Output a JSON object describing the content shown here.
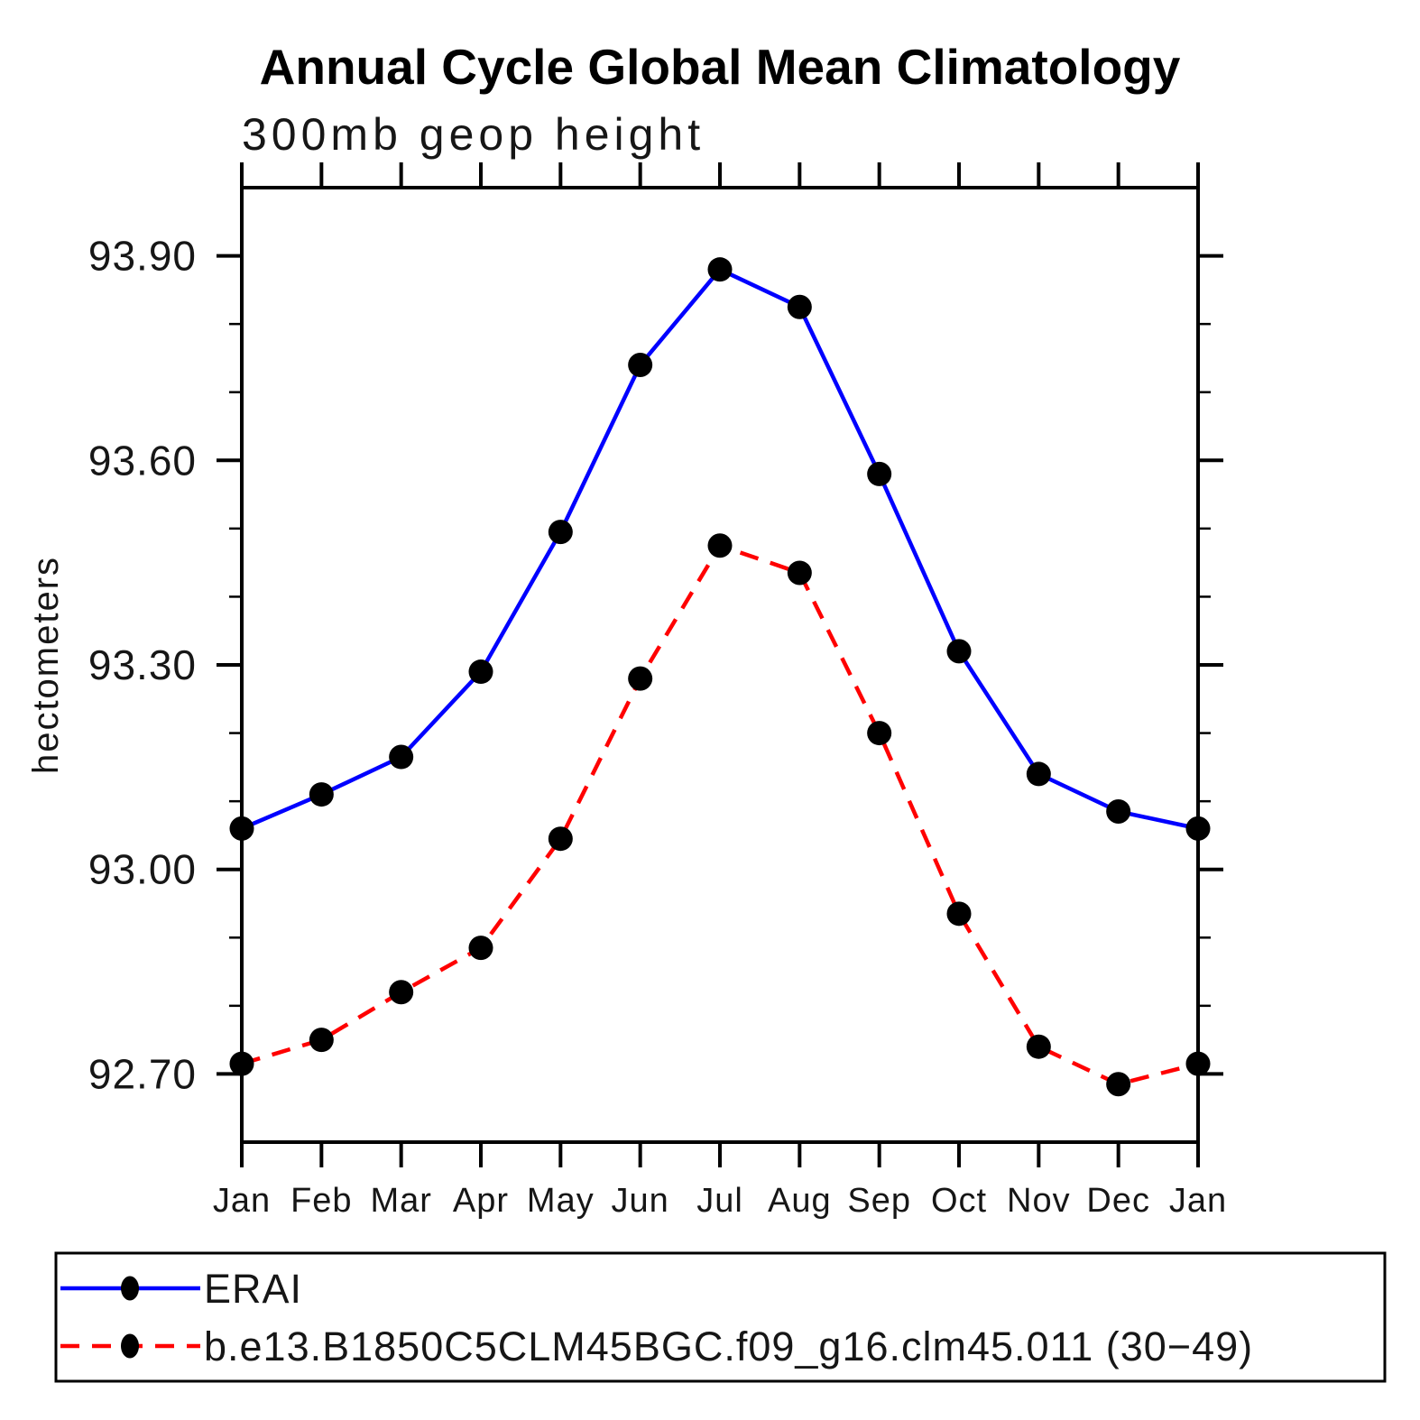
{
  "page": {
    "background": "#ffffff"
  },
  "chart_data": {
    "type": "line",
    "title": "Annual Cycle Global Mean Climatology",
    "subtitle": "300mb geop height",
    "xlabel": "",
    "ylabel": "hectometers",
    "categories": [
      "Jan",
      "Feb",
      "Mar",
      "Apr",
      "May",
      "Jun",
      "Jul",
      "Aug",
      "Sep",
      "Oct",
      "Nov",
      "Dec",
      "Jan"
    ],
    "series": [
      {
        "name": "ERAI",
        "color": "#0000ff",
        "line_style": "solid",
        "marker": "circle",
        "marker_color": "#000000",
        "values": [
          93.06,
          93.11,
          93.165,
          93.29,
          93.495,
          93.74,
          93.88,
          93.825,
          93.58,
          93.32,
          93.14,
          93.085,
          93.06
        ]
      },
      {
        "name": "b.e13.B1850C5CLM45BGC.f09_g16.clm45.011 (30−49)",
        "color": "#ff0000",
        "line_style": "dashed",
        "marker": "circle",
        "marker_color": "#000000",
        "values": [
          92.715,
          92.75,
          92.82,
          92.885,
          93.045,
          93.28,
          93.475,
          93.435,
          93.2,
          92.935,
          92.74,
          92.685,
          92.715
        ]
      }
    ],
    "ylim": [
      92.6,
      94.0
    ],
    "yticks_major": [
      92.7,
      93.0,
      93.3,
      93.6,
      93.9
    ],
    "ytick_minor_step": 0.1,
    "ytick_label_format": "0.00",
    "grid": false,
    "legend_position": "bottom",
    "axis_color": "#000000",
    "text_color": "#000000"
  }
}
